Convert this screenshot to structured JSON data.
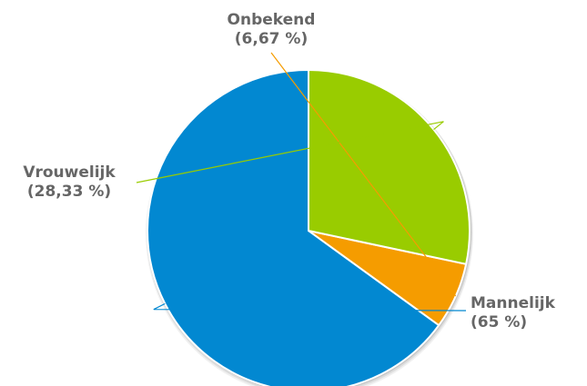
{
  "chart_data": {
    "type": "pie",
    "title": "",
    "slices": [
      {
        "label": "Mannelijk",
        "value": 65,
        "display": "(65 %)",
        "color": "#0288d1"
      },
      {
        "label": "Onbekend",
        "value": 6.67,
        "display": "(6,67 %)",
        "color": "#f59c00"
      },
      {
        "label": "Vrouwelijk",
        "value": 28.33,
        "display": "(28,33 %)",
        "color": "#99cc00"
      }
    ],
    "start_angle_deg": 0,
    "direction": "counterclockwise",
    "label_color": "#666666",
    "slice_border_color": "#ffffff"
  }
}
